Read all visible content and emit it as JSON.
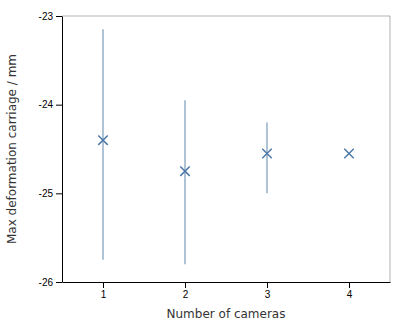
{
  "chart_data": {
    "type": "scatter",
    "xlabel": "Number of cameras",
    "ylabel": "Max deformation carriage / mm",
    "x": [
      1,
      2,
      3,
      4
    ],
    "values": [
      -24.4,
      -24.75,
      -24.55,
      -24.55
    ],
    "error_upper": [
      1.25,
      0.8,
      0.35,
      0.0
    ],
    "error_lower": [
      1.35,
      1.05,
      0.45,
      0.0
    ],
    "marker": "x",
    "xlim": [
      0.5,
      4.5
    ],
    "ylim": [
      -26,
      -23
    ],
    "xticks": [
      1,
      2,
      3,
      4
    ],
    "yticks": [
      -26,
      -25,
      -24,
      -23
    ],
    "grid": false
  }
}
